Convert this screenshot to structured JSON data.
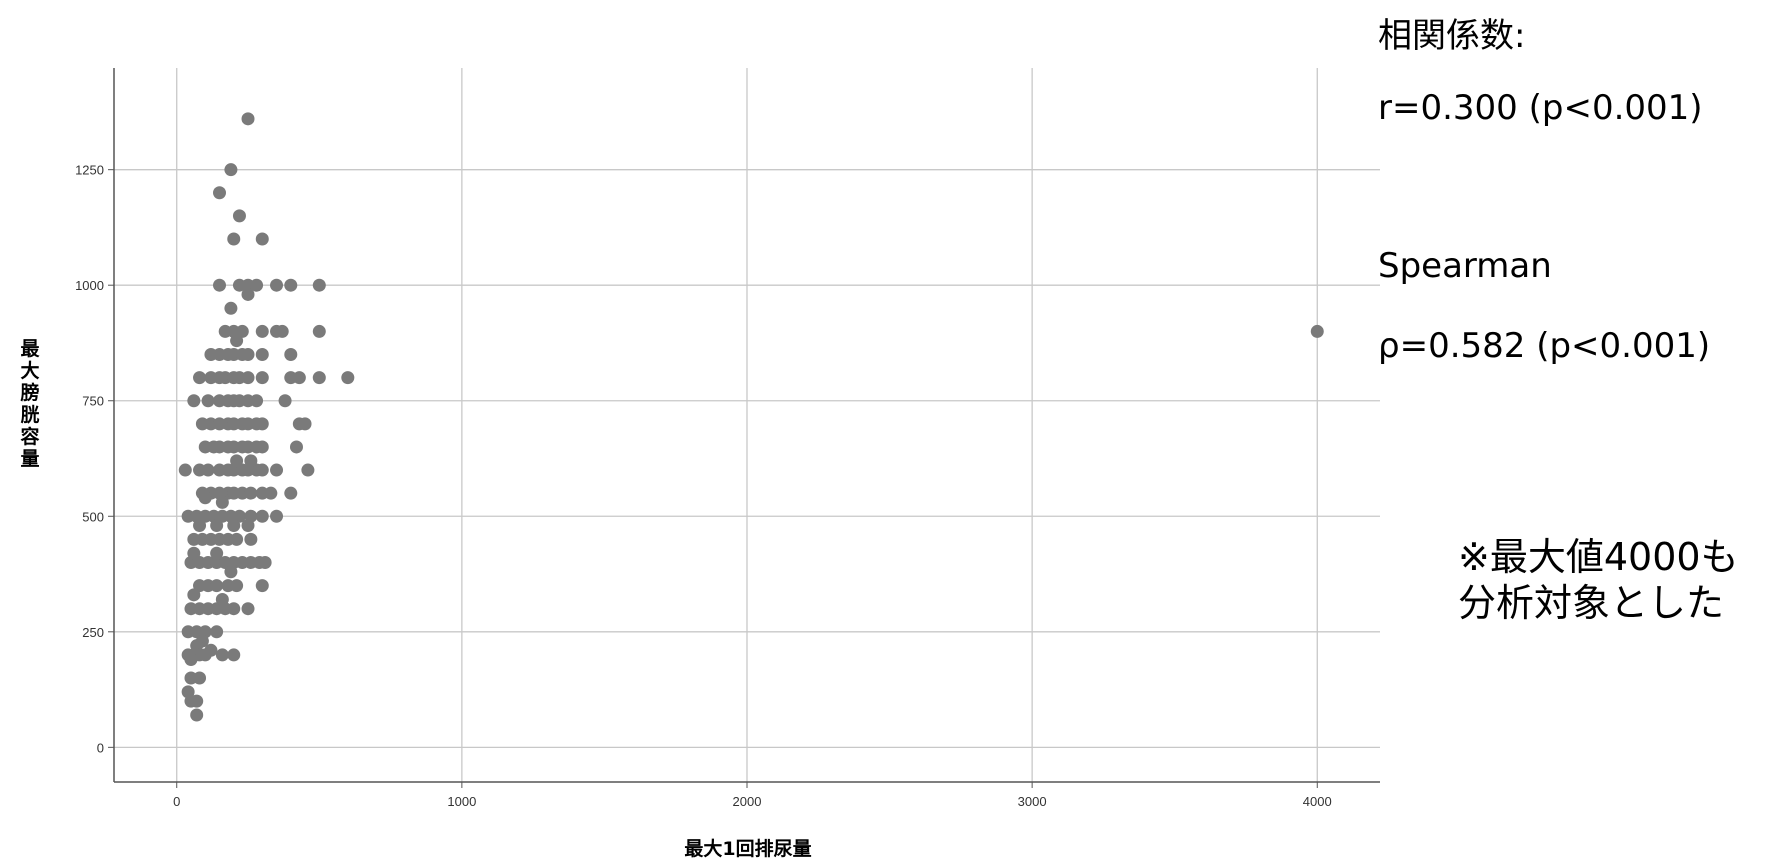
{
  "annotations": {
    "corr_title": "相関係数:",
    "r_value": "r=0.300 (p<0.001)",
    "spearman_label": "Spearman",
    "rho_value": "ρ=0.582 (p<0.001)",
    "note_line1": "※最大値4000も",
    "note_line2": "分析対象とした"
  },
  "colors": {
    "marker": "#7a7a7a",
    "grid": "#c8c8c8",
    "axis": "#555555"
  },
  "chart_data": {
    "type": "scatter",
    "title": "",
    "xlabel": "最大1回排尿量",
    "ylabel": "最大膀胱容量",
    "xlim": [
      -220,
      4220
    ],
    "ylim": [
      -75,
      1470
    ],
    "x_ticks": [
      0,
      1000,
      2000,
      3000,
      4000
    ],
    "y_ticks": [
      0,
      250,
      500,
      750,
      1000,
      1250
    ],
    "grid": true,
    "legend": "none",
    "points": [
      [
        250,
        1360
      ],
      [
        190,
        1250
      ],
      [
        150,
        1200
      ],
      [
        220,
        1150
      ],
      [
        200,
        1100
      ],
      [
        300,
        1100
      ],
      [
        150,
        1000
      ],
      [
        220,
        1000
      ],
      [
        250,
        1000
      ],
      [
        280,
        1000
      ],
      [
        350,
        1000
      ],
      [
        400,
        1000
      ],
      [
        500,
        1000
      ],
      [
        250,
        980
      ],
      [
        190,
        950
      ],
      [
        170,
        900
      ],
      [
        200,
        900
      ],
      [
        230,
        900
      ],
      [
        300,
        900
      ],
      [
        350,
        900
      ],
      [
        370,
        900
      ],
      [
        500,
        900
      ],
      [
        210,
        880
      ],
      [
        120,
        850
      ],
      [
        150,
        850
      ],
      [
        180,
        850
      ],
      [
        200,
        850
      ],
      [
        230,
        850
      ],
      [
        250,
        850
      ],
      [
        300,
        850
      ],
      [
        400,
        850
      ],
      [
        80,
        800
      ],
      [
        120,
        800
      ],
      [
        150,
        800
      ],
      [
        170,
        800
      ],
      [
        200,
        800
      ],
      [
        220,
        800
      ],
      [
        250,
        800
      ],
      [
        300,
        800
      ],
      [
        400,
        800
      ],
      [
        430,
        800
      ],
      [
        500,
        800
      ],
      [
        600,
        800
      ],
      [
        60,
        750
      ],
      [
        110,
        750
      ],
      [
        150,
        750
      ],
      [
        180,
        750
      ],
      [
        200,
        750
      ],
      [
        220,
        750
      ],
      [
        250,
        750
      ],
      [
        280,
        750
      ],
      [
        380,
        750
      ],
      [
        90,
        700
      ],
      [
        120,
        700
      ],
      [
        150,
        700
      ],
      [
        180,
        700
      ],
      [
        200,
        700
      ],
      [
        230,
        700
      ],
      [
        250,
        700
      ],
      [
        280,
        700
      ],
      [
        300,
        700
      ],
      [
        430,
        700
      ],
      [
        450,
        700
      ],
      [
        100,
        650
      ],
      [
        130,
        650
      ],
      [
        150,
        650
      ],
      [
        180,
        650
      ],
      [
        200,
        650
      ],
      [
        230,
        650
      ],
      [
        250,
        650
      ],
      [
        280,
        650
      ],
      [
        300,
        650
      ],
      [
        420,
        650
      ],
      [
        30,
        600
      ],
      [
        80,
        600
      ],
      [
        110,
        600
      ],
      [
        150,
        600
      ],
      [
        180,
        600
      ],
      [
        200,
        600
      ],
      [
        230,
        600
      ],
      [
        250,
        600
      ],
      [
        280,
        600
      ],
      [
        300,
        600
      ],
      [
        350,
        600
      ],
      [
        460,
        600
      ],
      [
        210,
        620
      ],
      [
        260,
        620
      ],
      [
        90,
        550
      ],
      [
        120,
        550
      ],
      [
        150,
        550
      ],
      [
        180,
        550
      ],
      [
        200,
        550
      ],
      [
        230,
        550
      ],
      [
        260,
        550
      ],
      [
        300,
        550
      ],
      [
        330,
        550
      ],
      [
        400,
        550
      ],
      [
        100,
        540
      ],
      [
        160,
        530
      ],
      [
        40,
        500
      ],
      [
        70,
        500
      ],
      [
        100,
        500
      ],
      [
        130,
        500
      ],
      [
        160,
        500
      ],
      [
        190,
        500
      ],
      [
        220,
        500
      ],
      [
        260,
        500
      ],
      [
        300,
        500
      ],
      [
        350,
        500
      ],
      [
        80,
        480
      ],
      [
        140,
        480
      ],
      [
        200,
        480
      ],
      [
        250,
        480
      ],
      [
        60,
        450
      ],
      [
        90,
        450
      ],
      [
        120,
        450
      ],
      [
        150,
        450
      ],
      [
        180,
        450
      ],
      [
        210,
        450
      ],
      [
        260,
        450
      ],
      [
        50,
        400
      ],
      [
        80,
        400
      ],
      [
        110,
        400
      ],
      [
        140,
        400
      ],
      [
        170,
        400
      ],
      [
        200,
        400
      ],
      [
        230,
        400
      ],
      [
        260,
        400
      ],
      [
        290,
        400
      ],
      [
        310,
        400
      ],
      [
        60,
        420
      ],
      [
        140,
        420
      ],
      [
        190,
        380
      ],
      [
        80,
        350
      ],
      [
        110,
        350
      ],
      [
        140,
        350
      ],
      [
        180,
        350
      ],
      [
        210,
        350
      ],
      [
        300,
        350
      ],
      [
        50,
        300
      ],
      [
        80,
        300
      ],
      [
        110,
        300
      ],
      [
        140,
        300
      ],
      [
        170,
        300
      ],
      [
        200,
        300
      ],
      [
        250,
        300
      ],
      [
        60,
        330
      ],
      [
        160,
        320
      ],
      [
        40,
        250
      ],
      [
        70,
        250
      ],
      [
        100,
        250
      ],
      [
        140,
        250
      ],
      [
        90,
        230
      ],
      [
        70,
        220
      ],
      [
        120,
        210
      ],
      [
        40,
        200
      ],
      [
        60,
        200
      ],
      [
        80,
        200
      ],
      [
        100,
        200
      ],
      [
        160,
        200
      ],
      [
        200,
        200
      ],
      [
        50,
        190
      ],
      [
        50,
        150
      ],
      [
        80,
        150
      ],
      [
        40,
        120
      ],
      [
        50,
        100
      ],
      [
        70,
        100
      ],
      [
        70,
        70
      ],
      [
        4000,
        900
      ]
    ]
  }
}
